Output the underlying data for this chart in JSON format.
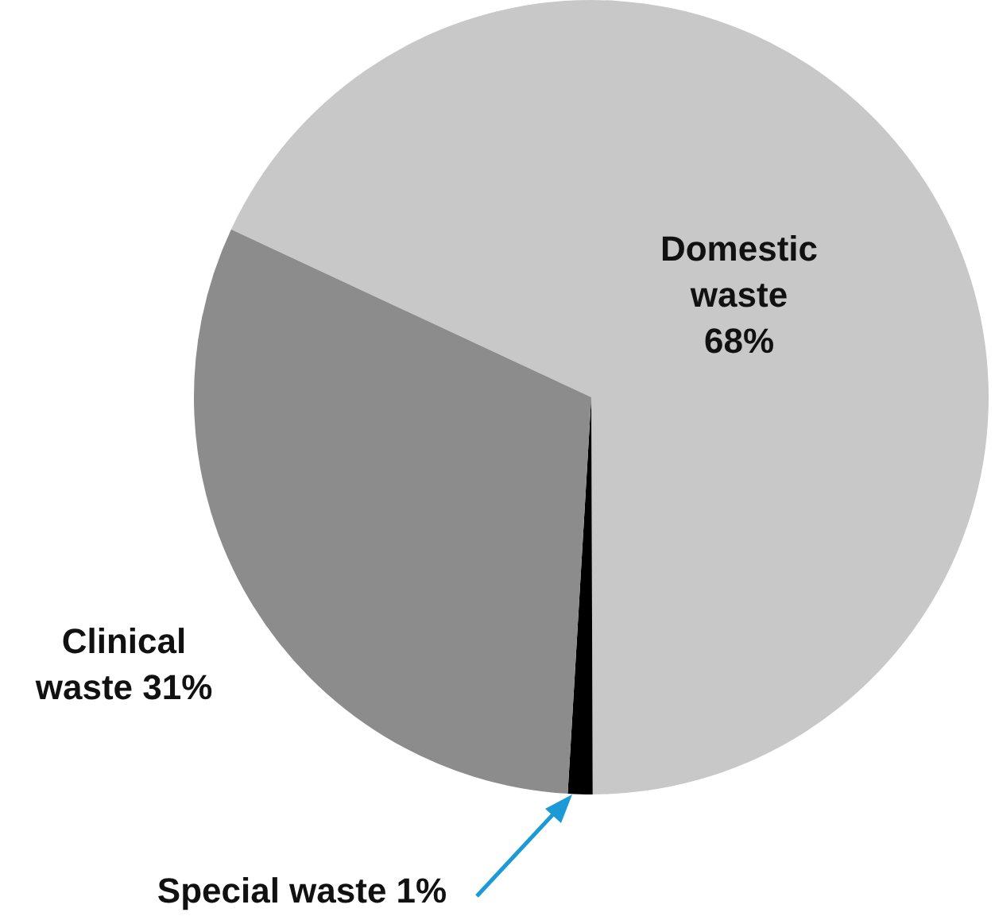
{
  "chart_data": {
    "type": "pie",
    "categories": [
      "Domestic waste",
      "Special waste",
      "Clinical waste"
    ],
    "values": [
      68,
      1,
      31
    ],
    "colors": [
      "#c8c8c8",
      "#000000",
      "#8c8c8c"
    ],
    "value_labels": [
      "68%",
      "1%",
      "31%"
    ],
    "legend": false
  }
}
